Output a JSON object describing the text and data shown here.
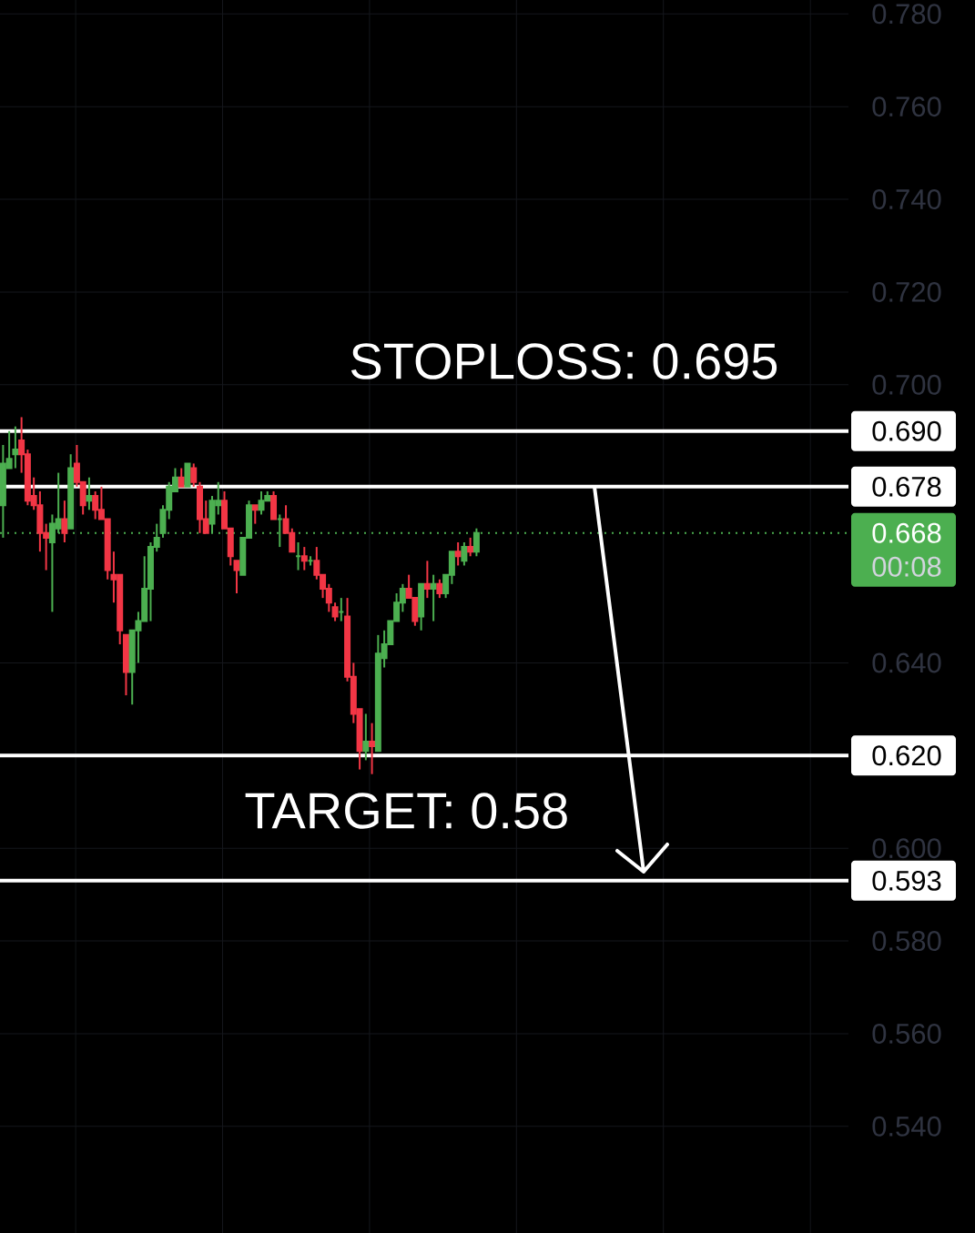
{
  "chart_data": {
    "type": "candlestick",
    "categories": [
      null,
      null,
      null,
      null,
      null,
      null,
      null,
      null,
      null,
      null,
      null,
      null,
      null,
      null,
      null,
      null,
      null,
      null,
      null,
      null,
      null,
      null,
      null,
      null,
      null,
      null,
      null,
      null,
      null,
      null,
      null,
      null,
      null,
      null,
      null,
      null,
      null,
      null,
      null,
      null,
      null,
      null,
      null,
      null,
      null,
      null,
      null,
      null,
      null,
      null,
      null,
      null,
      null,
      null,
      null,
      null,
      null,
      null,
      null,
      null,
      null,
      null,
      null,
      null,
      null,
      null,
      null,
      null,
      null,
      null,
      null,
      null,
      null,
      null,
      null,
      null,
      null,
      null,
      null,
      null,
      null,
      null,
      null,
      null,
      null,
      null,
      null,
      null,
      null,
      null,
      null,
      null,
      null,
      null,
      null,
      null,
      null,
      null,
      null,
      null,
      null,
      null,
      null,
      null,
      null,
      null,
      null,
      null,
      null,
      null,
      null,
      null,
      null,
      null,
      null,
      null,
      null,
      null,
      null,
      null,
      null,
      null,
      null,
      null,
      null,
      null,
      null,
      null,
      null,
      null,
      null,
      null,
      null,
      null,
      null,
      null,
      null,
      null
    ],
    "ohlc": [
      [
        0.674,
        0.687,
        0.667,
        0.683
      ],
      [
        0.682,
        0.69,
        0.682,
        0.684
      ],
      [
        0.685,
        0.691,
        0.682,
        0.686
      ],
      [
        0.688,
        0.693,
        0.681,
        0.685
      ],
      [
        0.685,
        0.686,
        0.674,
        0.675
      ],
      [
        0.676,
        0.68,
        0.673,
        0.674
      ],
      [
        0.674,
        0.677,
        0.664,
        0.668
      ],
      [
        0.668,
        0.67,
        0.66,
        0.667
      ],
      [
        0.666,
        0.672,
        0.651,
        0.67
      ],
      [
        0.669,
        0.681,
        0.668,
        0.671
      ],
      [
        0.671,
        0.675,
        0.666,
        0.668
      ],
      [
        0.669,
        0.685,
        0.669,
        0.682
      ],
      [
        0.683,
        0.687,
        0.678,
        0.679
      ],
      [
        0.679,
        0.679,
        0.672,
        0.674
      ],
      [
        0.675,
        0.68,
        0.673,
        0.676
      ],
      [
        0.676,
        0.677,
        0.671,
        0.673
      ],
      [
        0.673,
        0.678,
        0.671,
        0.671
      ],
      [
        0.671,
        0.671,
        0.658,
        0.66
      ],
      [
        0.659,
        0.664,
        0.653,
        0.658
      ],
      [
        0.659,
        0.659,
        0.644,
        0.647
      ],
      [
        0.646,
        0.646,
        0.633,
        0.638
      ],
      [
        0.638,
        0.647,
        0.631,
        0.647
      ],
      [
        0.647,
        0.651,
        0.64,
        0.649
      ],
      [
        0.649,
        0.663,
        0.649,
        0.656
      ],
      [
        0.656,
        0.666,
        0.649,
        0.665
      ],
      [
        0.665,
        0.67,
        0.664,
        0.667
      ],
      [
        0.668,
        0.674,
        0.667,
        0.673
      ],
      [
        0.673,
        0.679,
        0.671,
        0.678
      ],
      [
        0.677,
        0.682,
        0.677,
        0.68
      ],
      [
        0.68,
        0.682,
        0.678,
        0.678
      ],
      [
        0.678,
        0.683,
        0.678,
        0.683
      ],
      [
        0.682,
        0.683,
        0.678,
        0.679
      ],
      [
        0.678,
        0.679,
        0.668,
        0.671
      ],
      [
        0.671,
        0.675,
        0.668,
        0.668
      ],
      [
        0.67,
        0.676,
        0.668,
        0.675
      ],
      [
        0.674,
        0.679,
        0.672,
        0.675
      ],
      [
        0.675,
        0.677,
        0.669,
        0.669
      ],
      [
        0.669,
        0.669,
        0.661,
        0.663
      ],
      [
        0.662,
        0.662,
        0.655,
        0.66
      ],
      [
        0.659,
        0.667,
        0.659,
        0.667
      ],
      [
        0.667,
        0.675,
        0.667,
        0.674
      ],
      [
        0.674,
        0.674,
        0.67,
        0.673
      ],
      [
        0.673,
        0.677,
        0.672,
        0.675
      ],
      [
        0.675,
        0.677,
        0.675,
        0.676
      ],
      [
        0.676,
        0.677,
        0.671,
        0.671
      ],
      [
        0.671,
        0.672,
        0.665,
        0.671
      ],
      [
        0.671,
        0.674,
        0.668,
        0.668
      ],
      [
        0.668,
        0.669,
        0.664,
        0.664
      ],
      [
        0.663,
        0.666,
        0.66,
        0.663
      ],
      [
        0.663,
        0.665,
        0.66,
        0.662
      ],
      [
        0.662,
        0.663,
        0.661,
        0.662
      ],
      [
        0.662,
        0.665,
        0.658,
        0.659
      ],
      [
        0.659,
        0.659,
        0.654,
        0.656
      ],
      [
        0.656,
        0.657,
        0.651,
        0.653
      ],
      [
        0.652,
        0.653,
        0.649,
        0.65
      ],
      [
        0.651,
        0.654,
        0.649,
        0.651
      ],
      [
        0.65,
        0.654,
        0.636,
        0.637
      ],
      [
        0.637,
        0.64,
        0.627,
        0.629
      ],
      [
        0.63,
        0.63,
        0.617,
        0.621
      ],
      [
        0.621,
        0.629,
        0.619,
        0.623
      ],
      [
        0.623,
        0.627,
        0.616,
        0.622
      ],
      [
        0.621,
        0.646,
        0.621,
        0.642
      ],
      [
        0.641,
        0.647,
        0.639,
        0.644
      ],
      [
        0.644,
        0.649,
        0.644,
        0.649
      ],
      [
        0.649,
        0.655,
        0.649,
        0.653
      ],
      [
        0.653,
        0.657,
        0.651,
        0.656
      ],
      [
        0.656,
        0.659,
        0.654,
        0.654
      ],
      [
        0.654,
        0.654,
        0.648,
        0.649
      ],
      [
        0.65,
        0.657,
        0.647,
        0.657
      ],
      [
        0.657,
        0.662,
        0.654,
        0.656
      ],
      [
        0.656,
        0.659,
        0.649,
        0.657
      ],
      [
        0.657,
        0.658,
        0.654,
        0.655
      ],
      [
        0.655,
        0.659,
        0.654,
        0.659
      ],
      [
        0.659,
        0.664,
        0.657,
        0.664
      ],
      [
        0.664,
        0.666,
        0.661,
        0.663
      ],
      [
        0.662,
        0.666,
        0.661,
        0.665
      ],
      [
        0.665,
        0.667,
        0.663,
        0.664
      ],
      [
        0.664,
        0.669,
        0.663,
        0.668
      ],
      null,
      null,
      null,
      null,
      null,
      null,
      null,
      null,
      null,
      null,
      null,
      null,
      null,
      null,
      null,
      null,
      null,
      null,
      null,
      null,
      null,
      null,
      null,
      null,
      null,
      null,
      null,
      null,
      null,
      null,
      null,
      null,
      null,
      null,
      null,
      null,
      null,
      null,
      null,
      null,
      null,
      null,
      null,
      null,
      null,
      null,
      null,
      null,
      null,
      null,
      null,
      null,
      null,
      null,
      null,
      null,
      null,
      null,
      null,
      null
    ],
    "colors": [
      "#4caf50",
      "#4caf50",
      "#4caf50",
      "#f23645",
      "#f23645",
      "#f23645",
      "#f23645",
      "#f23645",
      "#4caf50",
      "#4caf50",
      "#f23645",
      "#4caf50",
      "#f23645",
      "#f23645",
      "#4caf50",
      "#f23645",
      "#f23645",
      "#f23645",
      "#f23645",
      "#f23645",
      "#f23645",
      "#4caf50",
      "#4caf50",
      "#4caf50",
      "#4caf50",
      "#4caf50",
      "#4caf50",
      "#4caf50",
      "#4caf50",
      "#f23645",
      "#4caf50",
      "#f23645",
      "#f23645",
      "#f23645",
      "#4caf50",
      "#4caf50",
      "#f23645",
      "#f23645",
      "#f23645",
      "#4caf50",
      "#4caf50",
      "#f23645",
      "#4caf50",
      "#4caf50",
      "#f23645",
      "#4caf50",
      "#f23645",
      "#f23645",
      "#4caf50",
      "#f23645",
      "#4caf50",
      "#f23645",
      "#f23645",
      "#f23645",
      "#f23645",
      "#4caf50",
      "#f23645",
      "#f23645",
      "#f23645",
      "#4caf50",
      "#f23645",
      "#4caf50",
      "#4caf50",
      "#4caf50",
      "#4caf50",
      "#4caf50",
      "#f23645",
      "#f23645",
      "#4caf50",
      "#f23645",
      "#4caf50",
      "#f23645",
      "#4caf50",
      "#4caf50",
      "#f23645",
      "#4caf50",
      "#f23645",
      "#4caf50",
      null,
      null,
      null,
      null,
      null,
      null,
      null,
      null,
      null,
      null,
      null,
      null,
      null,
      null,
      null,
      null,
      null,
      null,
      null,
      null,
      null,
      null,
      null,
      null,
      null,
      null,
      null,
      null,
      null,
      null,
      null,
      null,
      null,
      null,
      null,
      null,
      null,
      null,
      null,
      null,
      null,
      null,
      null,
      null,
      null,
      null,
      null,
      null,
      null,
      null,
      null,
      null,
      null,
      null,
      null,
      null,
      null,
      null,
      null,
      null
    ],
    "ylim": [
      0.517,
      0.783
    ],
    "yticks": [
      {
        "value": 0.54,
        "label": "0.540"
      },
      {
        "value": 0.56,
        "label": "0.560"
      },
      {
        "value": 0.58,
        "label": "0.580"
      },
      {
        "value": 0.6,
        "label": "0.600"
      },
      {
        "value": 0.64,
        "label": "0.640"
      },
      {
        "value": 0.7,
        "label": "0.700"
      },
      {
        "value": 0.72,
        "label": "0.720"
      },
      {
        "value": 0.74,
        "label": "0.740"
      },
      {
        "value": 0.76,
        "label": "0.760"
      },
      {
        "value": 0.78,
        "label": "0.780"
      }
    ],
    "grid": true,
    "ref_lines": [
      {
        "axis": "y",
        "value": 0.69,
        "label": "0.690",
        "color": "#ffffff"
      },
      {
        "axis": "y",
        "value": 0.678,
        "label": "0.678",
        "color": "#ffffff"
      },
      {
        "axis": "y",
        "value": 0.668,
        "label": "0.668",
        "color": "#4caf50",
        "line_style": "dotted"
      },
      {
        "axis": "y",
        "value": 0.62,
        "label": "0.620",
        "color": "#ffffff"
      },
      {
        "axis": "y",
        "value": 0.593,
        "label": "0.593",
        "color": "#ffffff"
      }
    ],
    "annotations": [
      "STOPLOSS: 0.695",
      "TARGET: 0.58",
      "00:08"
    ]
  }
}
